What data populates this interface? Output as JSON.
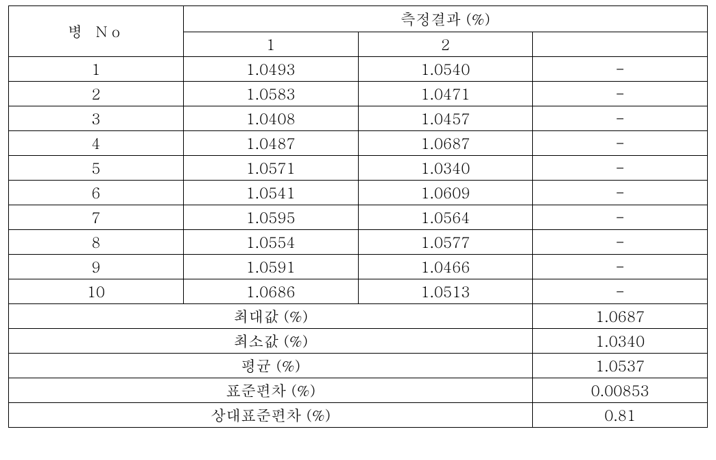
{
  "table": {
    "header": {
      "bottle_no": "병   No",
      "result_title": "측정결과   (%)",
      "sub_cols": [
        "1",
        "2",
        ""
      ]
    },
    "rows": [
      {
        "no": "1",
        "c1": "1.0493",
        "c2": "1.0540",
        "c3": "-"
      },
      {
        "no": "2",
        "c1": "1.0583",
        "c2": "1.0471",
        "c3": "-"
      },
      {
        "no": "3",
        "c1": "1.0408",
        "c2": "1.0457",
        "c3": "-"
      },
      {
        "no": "4",
        "c1": "1.0487",
        "c2": "1.0687",
        "c3": "-"
      },
      {
        "no": "5",
        "c1": "1.0571",
        "c2": "1.0340",
        "c3": "-"
      },
      {
        "no": "6",
        "c1": "1.0541",
        "c2": "1.0609",
        "c3": "-"
      },
      {
        "no": "7",
        "c1": "1.0595",
        "c2": "1.0564",
        "c3": "-"
      },
      {
        "no": "8",
        "c1": "1.0554",
        "c2": "1.0577",
        "c3": "-"
      },
      {
        "no": "9",
        "c1": "1.0591",
        "c2": "1.0466",
        "c3": "-"
      },
      {
        "no": "10",
        "c1": "1.0686",
        "c2": "1.0513",
        "c3": "-"
      }
    ],
    "summary": [
      {
        "label": "최대값 (%)",
        "value": "1.0687"
      },
      {
        "label": "최소값 (%)",
        "value": "1.0340"
      },
      {
        "label": "평균 (%)",
        "value": "1.0537"
      },
      {
        "label": "표준편차 (%)",
        "value": "0.00853"
      },
      {
        "label": "상대표준편차 (%)",
        "value": "0.81"
      }
    ]
  }
}
